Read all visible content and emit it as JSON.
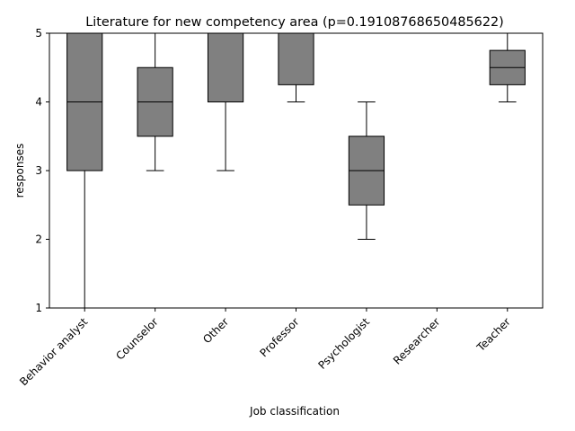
{
  "chart_data": {
    "type": "box",
    "title": "Literature for new competency area (p=0.19108768650485622)",
    "xlabel": "Job classification",
    "ylabel": "responses",
    "ylim": [
      1,
      5
    ],
    "yticks": [
      1,
      2,
      3,
      4,
      5
    ],
    "grid": false,
    "box_color": "#808080",
    "categories": [
      "Behavior analyst",
      "Counselor",
      "Other",
      "Professor",
      "Psychologist",
      "Researcher",
      "Teacher"
    ],
    "boxes": [
      {
        "whisker_low": 1,
        "q1": 3,
        "median": 4,
        "q3": 5,
        "whisker_high": 5
      },
      {
        "whisker_low": 3,
        "q1": 3.5,
        "median": 4,
        "q3": 4.5,
        "whisker_high": 5
      },
      {
        "whisker_low": 3,
        "q1": 4,
        "median": 5,
        "q3": 5,
        "whisker_high": 5
      },
      {
        "whisker_low": 4,
        "q1": 4.25,
        "median": 5,
        "q3": 5,
        "whisker_high": 5
      },
      {
        "whisker_low": 2,
        "q1": 2.5,
        "median": 3,
        "q3": 3.5,
        "whisker_high": 4
      },
      {
        "whisker_low": 5,
        "q1": 5,
        "median": 5,
        "q3": 5,
        "whisker_high": 5
      },
      {
        "whisker_low": 4,
        "q1": 4.25,
        "median": 4.5,
        "q3": 4.75,
        "whisker_high": 5
      }
    ]
  }
}
